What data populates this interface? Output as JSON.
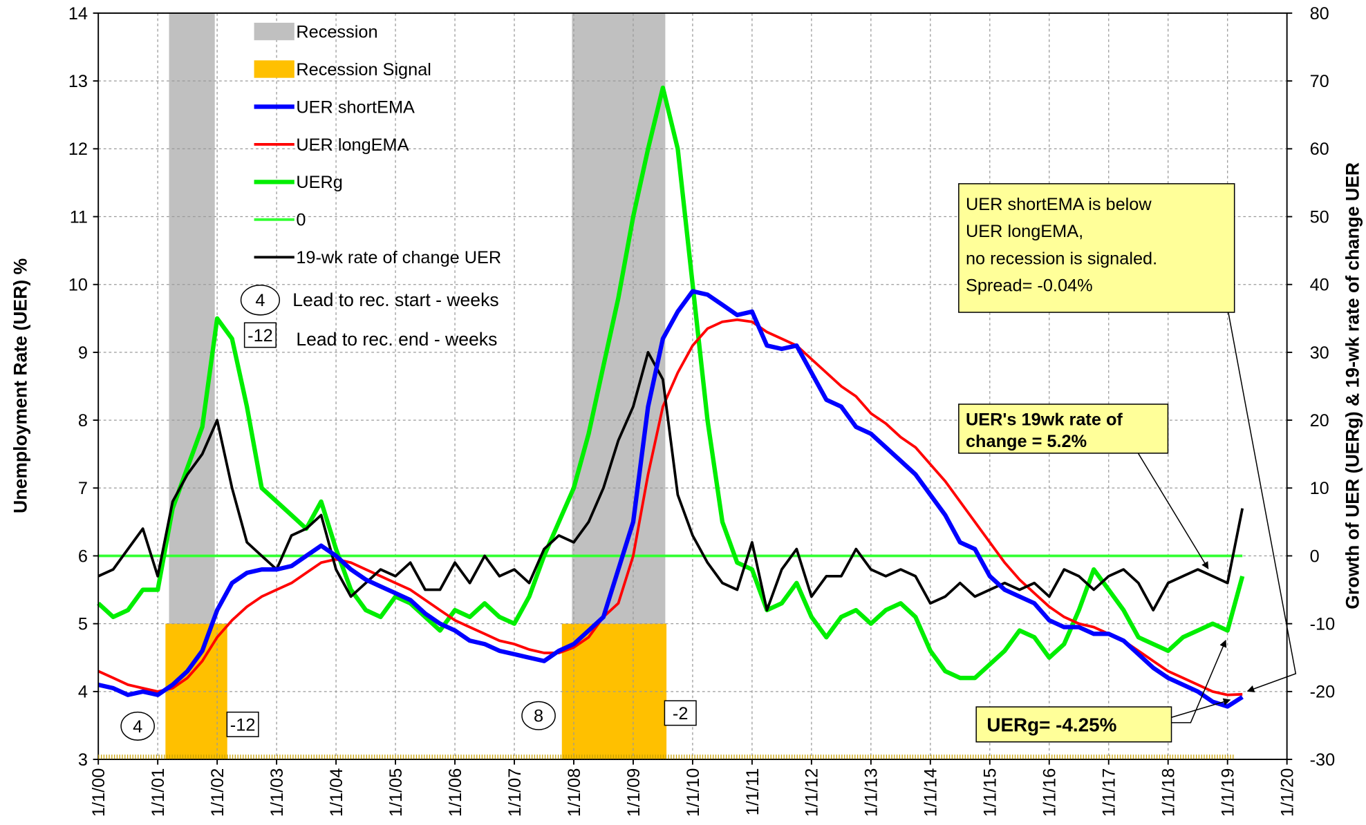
{
  "chart_data": {
    "type": "line",
    "y_title": "Unemployment Rate (UER) %",
    "y2_title": "Growth of UER (UERg) & 19-wk rate of change UER",
    "xlim": [
      2000,
      2020
    ],
    "xticks": [
      {
        "value": 2000,
        "label": "1/1/00"
      },
      {
        "value": 2001,
        "label": "1/1/01"
      },
      {
        "value": 2002,
        "label": "1/1/02"
      },
      {
        "value": 2003,
        "label": "1/1/03"
      },
      {
        "value": 2004,
        "label": "1/1/04"
      },
      {
        "value": 2005,
        "label": "1/1/05"
      },
      {
        "value": 2006,
        "label": "1/1/06"
      },
      {
        "value": 2007,
        "label": "1/1/07"
      },
      {
        "value": 2008,
        "label": "1/1/08"
      },
      {
        "value": 2009,
        "label": "1/1/09"
      },
      {
        "value": 2010,
        "label": "1/1/10"
      },
      {
        "value": 2011,
        "label": "1/1/11"
      },
      {
        "value": 2012,
        "label": "1/1/12"
      },
      {
        "value": 2013,
        "label": "1/1/13"
      },
      {
        "value": 2014,
        "label": "1/1/14"
      },
      {
        "value": 2015,
        "label": "1/1/15"
      },
      {
        "value": 2016,
        "label": "1/1/16"
      },
      {
        "value": 2017,
        "label": "1/1/17"
      },
      {
        "value": 2018,
        "label": "1/1/18"
      },
      {
        "value": 2019,
        "label": "1/1/19"
      },
      {
        "value": 2020,
        "label": "1/1/20"
      }
    ],
    "ylim": [
      3,
      14
    ],
    "yticks": [
      3,
      4,
      5,
      6,
      7,
      8,
      9,
      10,
      11,
      12,
      13,
      14
    ],
    "y2lim": [
      -30,
      80
    ],
    "y2ticks": [
      -30,
      -20,
      -10,
      0,
      10,
      20,
      30,
      40,
      50,
      60,
      70,
      80
    ],
    "grid": true,
    "recession": {
      "name": "Recession",
      "color": "#c0c0c0",
      "spans": [
        [
          2001.19,
          2001.96
        ],
        [
          2007.97,
          2009.54
        ]
      ]
    },
    "recession_signal": {
      "name": "Recession Signal",
      "color": "#ffc000",
      "level": 5,
      "spans": [
        [
          2001.13,
          2002.17
        ],
        [
          2007.8,
          2009.56
        ]
      ]
    },
    "x": [
      2000,
      2000.25,
      2000.5,
      2000.75,
      2001,
      2001.25,
      2001.5,
      2001.75,
      2002,
      2002.25,
      2002.5,
      2002.75,
      2003,
      2003.25,
      2003.5,
      2003.75,
      2004,
      2004.25,
      2004.5,
      2004.75,
      2005,
      2005.25,
      2005.5,
      2005.75,
      2006,
      2006.25,
      2006.5,
      2006.75,
      2007,
      2007.25,
      2007.5,
      2007.75,
      2008,
      2008.25,
      2008.5,
      2008.75,
      2009,
      2009.25,
      2009.5,
      2009.75,
      2010,
      2010.25,
      2010.5,
      2010.75,
      2011,
      2011.25,
      2011.5,
      2011.75,
      2012,
      2012.25,
      2012.5,
      2012.75,
      2013,
      2013.25,
      2013.5,
      2013.75,
      2014,
      2014.25,
      2014.5,
      2014.75,
      2015,
      2015.25,
      2015.5,
      2015.75,
      2016,
      2016.25,
      2016.5,
      2016.75,
      2017,
      2017.25,
      2017.5,
      2017.75,
      2018,
      2018.25,
      2018.5,
      2018.75,
      2019,
      2019.25
    ],
    "series": [
      {
        "name": "UER shortEMA",
        "color": "#0000ff",
        "width": 5,
        "values": [
          4.1,
          4.05,
          3.95,
          4.0,
          3.95,
          4.1,
          4.3,
          4.6,
          5.2,
          5.6,
          5.75,
          5.8,
          5.8,
          5.85,
          6.0,
          6.15,
          6.0,
          5.8,
          5.65,
          5.55,
          5.45,
          5.35,
          5.15,
          5.0,
          4.9,
          4.75,
          4.7,
          4.6,
          4.55,
          4.5,
          4.45,
          4.6,
          4.7,
          4.9,
          5.1,
          5.8,
          6.5,
          8.2,
          9.2,
          9.6,
          9.9,
          9.85,
          9.7,
          9.55,
          9.6,
          9.1,
          9.05,
          9.1,
          8.7,
          8.3,
          8.2,
          7.9,
          7.8,
          7.6,
          7.4,
          7.2,
          6.9,
          6.6,
          6.2,
          6.1,
          5.7,
          5.5,
          5.4,
          5.3,
          5.05,
          4.95,
          4.95,
          4.85,
          4.85,
          4.75,
          4.55,
          4.35,
          4.2,
          4.1,
          4.0,
          3.85,
          3.78,
          3.92
        ]
      },
      {
        "name": "UER longEMA",
        "color": "#ff0000",
        "width": 3,
        "values": [
          4.3,
          4.2,
          4.1,
          4.05,
          4.0,
          4.05,
          4.2,
          4.45,
          4.8,
          5.05,
          5.25,
          5.4,
          5.5,
          5.6,
          5.75,
          5.9,
          5.95,
          5.9,
          5.8,
          5.7,
          5.6,
          5.5,
          5.35,
          5.2,
          5.05,
          4.95,
          4.85,
          4.75,
          4.7,
          4.62,
          4.57,
          4.57,
          4.65,
          4.8,
          5.1,
          5.3,
          6.0,
          7.2,
          8.2,
          8.7,
          9.1,
          9.35,
          9.45,
          9.48,
          9.45,
          9.3,
          9.2,
          9.1,
          8.9,
          8.7,
          8.5,
          8.35,
          8.1,
          7.95,
          7.75,
          7.6,
          7.35,
          7.1,
          6.8,
          6.5,
          6.2,
          5.9,
          5.65,
          5.45,
          5.25,
          5.1,
          5.0,
          4.95,
          4.85,
          4.75,
          4.6,
          4.45,
          4.3,
          4.2,
          4.1,
          4.0,
          3.95,
          3.96
        ]
      },
      {
        "name": "UERg",
        "color": "#00ee00",
        "width": 5,
        "axis": "y2",
        "values": [
          -7,
          -9,
          -8,
          -5,
          -5,
          7,
          13,
          19,
          35,
          32,
          22,
          10,
          8,
          6,
          4,
          8,
          1,
          -5,
          -8,
          -9,
          -6,
          -7,
          -9,
          -11,
          -8,
          -9,
          -7,
          -9,
          -10,
          -6,
          0,
          5,
          10,
          18,
          28,
          38,
          50,
          60,
          69,
          60,
          40,
          20,
          5,
          -1,
          -2,
          -8,
          -7,
          -4,
          -9,
          -12,
          -9,
          -8,
          -10,
          -8,
          -7,
          -9,
          -14,
          -17,
          -18,
          -18,
          -16,
          -14,
          -11,
          -12,
          -15,
          -13,
          -8,
          -2,
          -5,
          -8,
          -12,
          -13,
          -14,
          -12,
          -11,
          -10,
          -11,
          -3
        ]
      },
      {
        "name": "0",
        "color": "#33ff33",
        "width": 3,
        "axis": "y2",
        "x": [
          2000,
          2019.25
        ],
        "values": [
          0,
          0
        ]
      },
      {
        "name": "19-wk rate of change UER",
        "color": "#000000",
        "width": 3,
        "axis": "y2",
        "values": [
          -3,
          -2,
          1,
          4,
          -3,
          8,
          12,
          15,
          20,
          10,
          2,
          0,
          -2,
          3,
          4,
          6,
          -2,
          -6,
          -4,
          -2,
          -3,
          -1,
          -5,
          -5,
          -1,
          -4,
          0,
          -3,
          -2,
          -4,
          1,
          3,
          2,
          5,
          10,
          17,
          22,
          30,
          26,
          9,
          3,
          -1,
          -4,
          -5,
          2,
          -8,
          -2,
          1,
          -6,
          -3,
          -3,
          1,
          -2,
          -3,
          -2,
          -3,
          -7,
          -6,
          -4,
          -6,
          -5,
          -4,
          -5,
          -4,
          -6,
          -2,
          -3,
          -5,
          -3,
          -2,
          -4,
          -8,
          -4,
          -3,
          -2,
          -3,
          -4,
          7
        ]
      }
    ],
    "lead_legend": [
      {
        "marker": "4",
        "shape": "circle",
        "text": "Lead to rec. start - weeks"
      },
      {
        "marker": "-12",
        "shape": "box",
        "text": "Lead to rec. end - weeks"
      }
    ],
    "lead_markers": [
      {
        "label": "4",
        "shape": "circle"
      },
      {
        "label": "-12",
        "shape": "box"
      },
      {
        "label": "8",
        "shape": "circle"
      },
      {
        "label": "-2",
        "shape": "box"
      }
    ],
    "annotations": [
      {
        "lines": [
          "UER shortEMA  is below",
          "UER longEMA,",
          "no recession is signaled.",
          "Spread= -0.04%"
        ],
        "bold": false
      },
      {
        "lines": [
          "UER's 19wk rate of",
          "change  = 5.2%"
        ],
        "bold": true
      },
      {
        "lines": [
          "UERg=   -4.25%"
        ],
        "bold": true
      }
    ]
  }
}
